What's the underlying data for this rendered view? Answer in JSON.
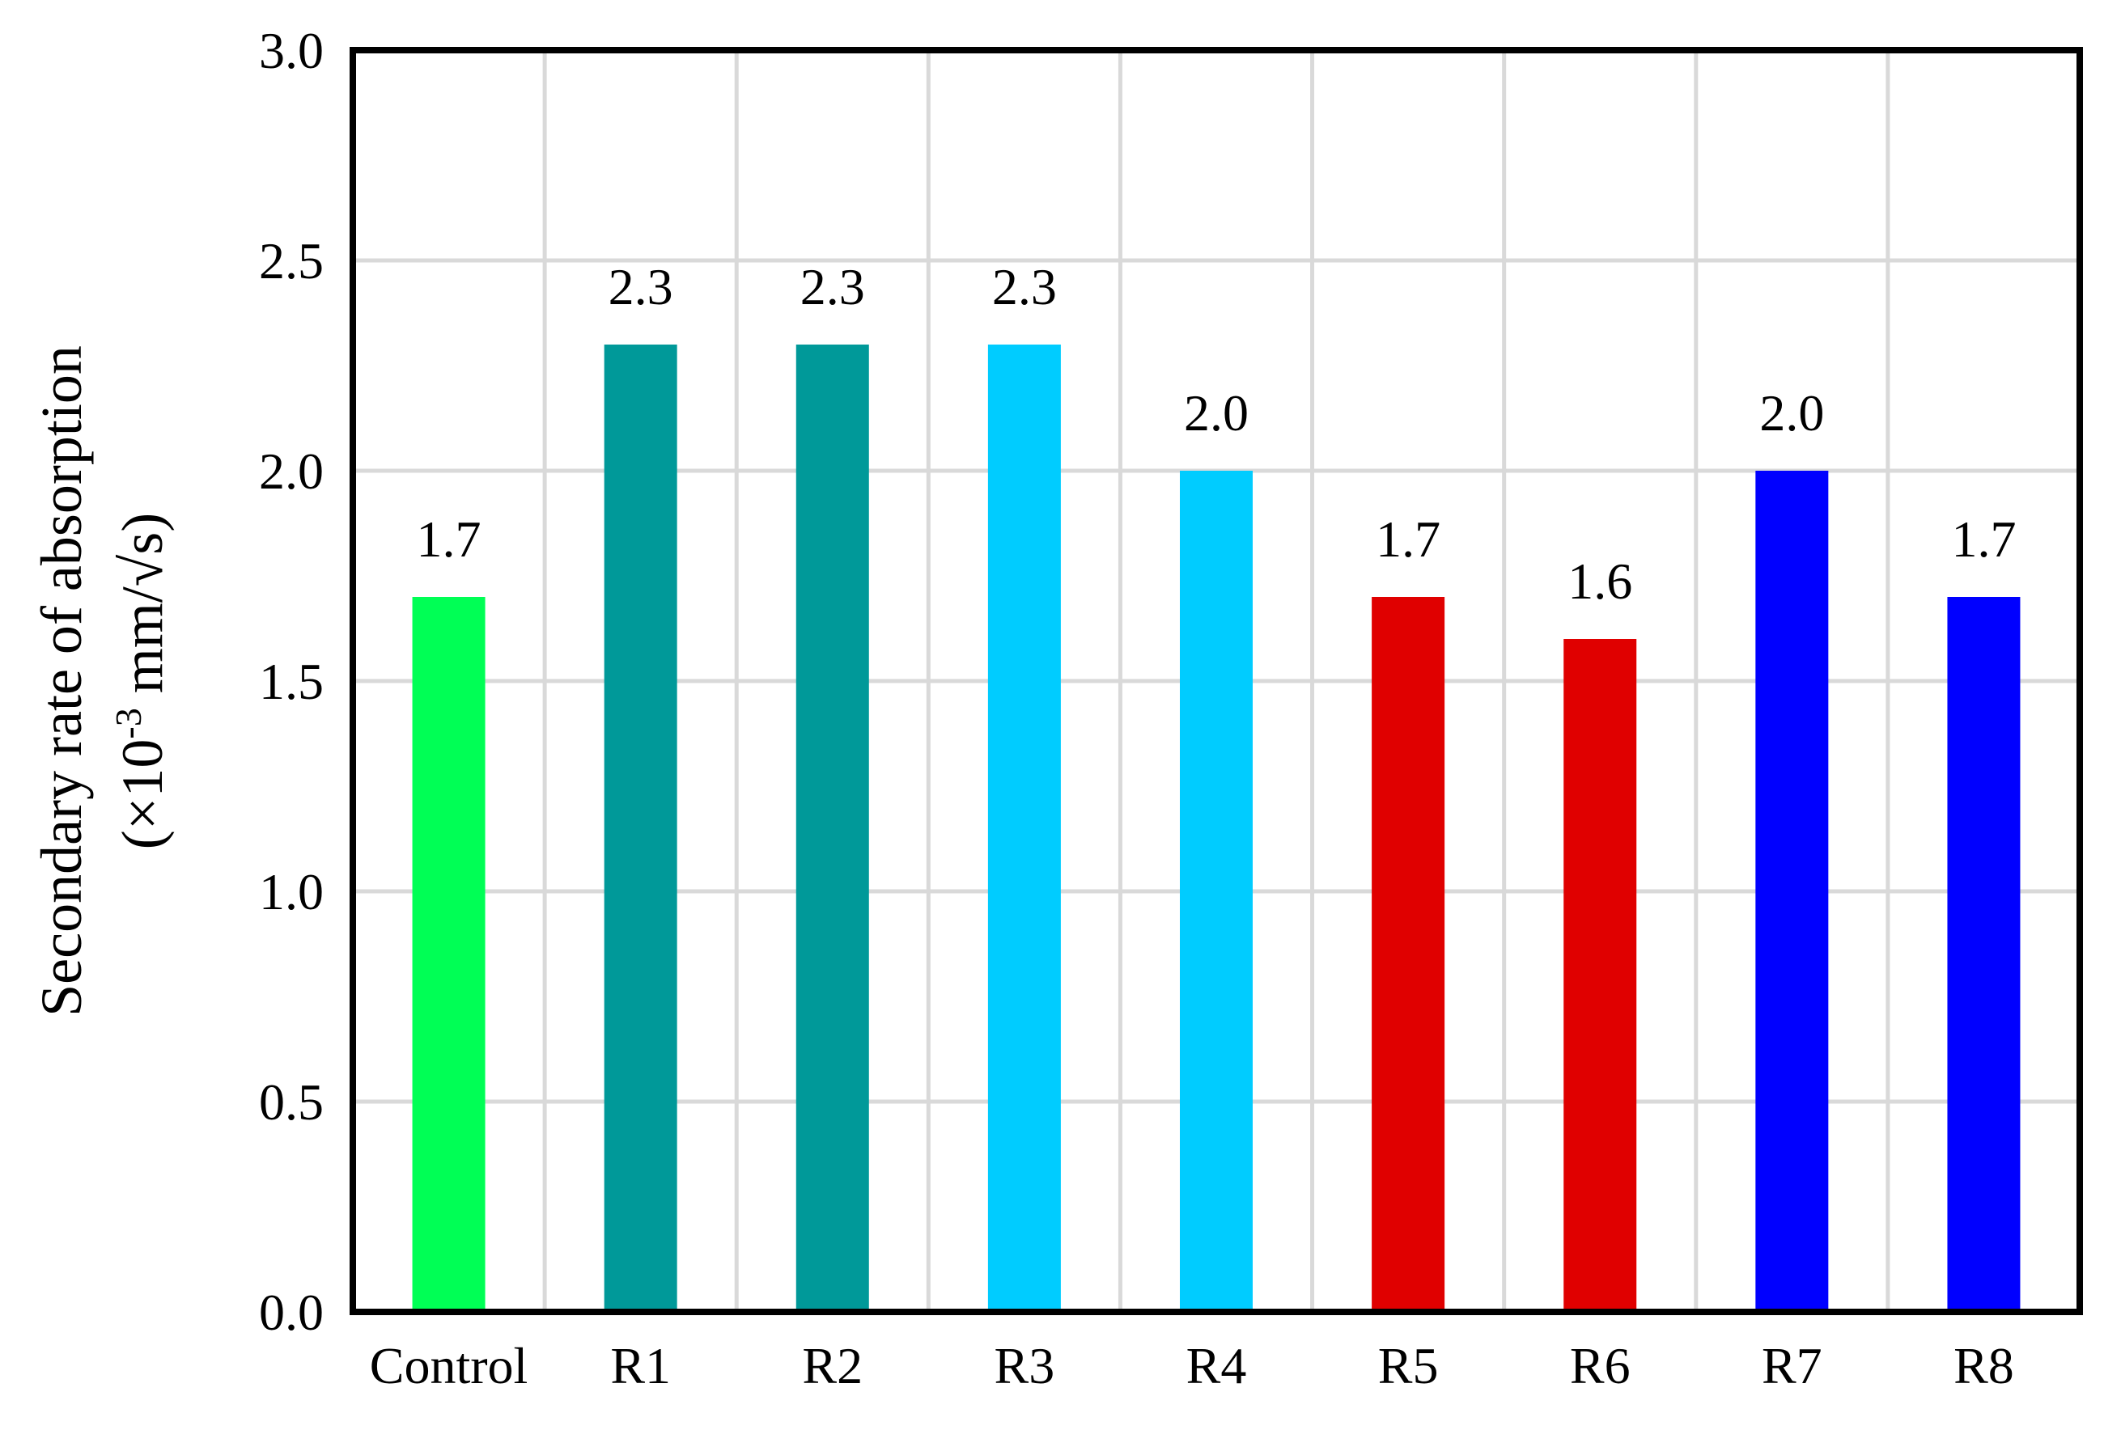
{
  "chart_data": {
    "type": "bar",
    "title": "",
    "xlabel": "",
    "ylabel_line1": "Secondary rate of absorption",
    "ylabel_line2_prefix": "(×10",
    "ylabel_line2_sup": "-3",
    "ylabel_line2_suffix": " mm/√s)",
    "categories": [
      "Control",
      "R1",
      "R2",
      "R3",
      "R4",
      "R5",
      "R6",
      "R7",
      "R8"
    ],
    "values": [
      1.7,
      2.3,
      2.3,
      2.3,
      2.0,
      1.7,
      1.6,
      2.0,
      1.7
    ],
    "data_labels": [
      "1.7",
      "2.3",
      "2.3",
      "2.3",
      "2.0",
      "1.7",
      "1.6",
      "2.0",
      "1.7"
    ],
    "colors": [
      "#00ff55",
      "#009999",
      "#009999",
      "#00ccff",
      "#00ccff",
      "#e00000",
      "#e00000",
      "#0000ff",
      "#0000ff"
    ],
    "ylim": [
      0,
      3.0
    ],
    "yticks": [
      0.0,
      0.5,
      1.0,
      1.5,
      2.0,
      2.5,
      3.0
    ],
    "ytick_labels": [
      "0.0",
      "0.5",
      "1.0",
      "1.5",
      "2.0",
      "2.5",
      "3.0"
    ],
    "grid": true,
    "legend": "none"
  }
}
